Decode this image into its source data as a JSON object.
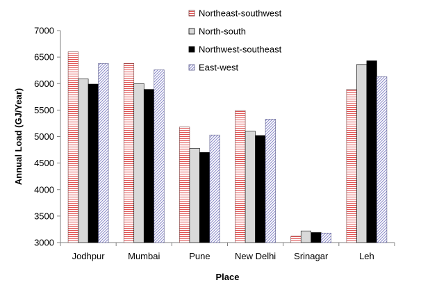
{
  "chart_data": {
    "type": "bar",
    "xlabel": "Place",
    "ylabel": "Annual Load (GJ/Year)",
    "ylim": [
      3000,
      7000
    ],
    "yticks": [
      3000,
      3500,
      4000,
      4500,
      5000,
      5500,
      6000,
      6500,
      7000
    ],
    "grid": false,
    "legend_position": "top-center",
    "categories": [
      "Jodhpur",
      "Mumbai",
      "Pune",
      "New Delhi",
      "Srinagar",
      "Leh"
    ],
    "series": [
      {
        "name": "Northeast-southwest",
        "values": [
          6600,
          6380,
          5180,
          5490,
          3120,
          5890
        ],
        "color": "#e05050",
        "pattern": "hlines-red"
      },
      {
        "name": "North-south",
        "values": [
          6090,
          6000,
          4780,
          5100,
          3220,
          6360
        ],
        "color": "#d9d9d9",
        "pattern": "solid-gray"
      },
      {
        "name": "Northwest-southeast",
        "values": [
          5990,
          5890,
          4700,
          5020,
          3190,
          6430
        ],
        "color": "#000000",
        "pattern": "solid-black"
      },
      {
        "name": "East-west",
        "values": [
          6380,
          6260,
          5030,
          5330,
          3180,
          6130
        ],
        "color": "#9999cc",
        "pattern": "diag-blue"
      }
    ]
  }
}
